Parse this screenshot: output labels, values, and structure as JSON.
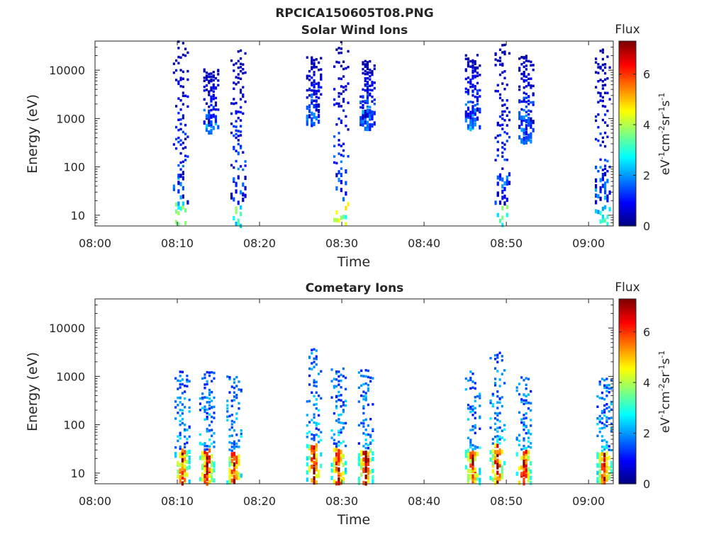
{
  "figure": {
    "title": "RPCICA150605T08.PNG"
  },
  "colors": {
    "colormap": "jet",
    "axis": "#262626",
    "background": "#ffffff"
  },
  "chart_data": [
    {
      "type": "heatmap",
      "title": "Solar Wind Ions",
      "xlabel": "Time",
      "ylabel": "Energy (eV)",
      "x_ticks": [
        "08:00",
        "08:10",
        "08:20",
        "08:30",
        "08:40",
        "08:50",
        "09:00"
      ],
      "xlim": [
        "08:00",
        "09:03"
      ],
      "y_scale": "log",
      "y_ticks": [
        "10",
        "100",
        "1000",
        "10000"
      ],
      "ylim": [
        6,
        40000
      ],
      "colorbar": {
        "label": "Flux",
        "unit": "eV-1cm-2sr-1s-1",
        "ticks": [
          "0",
          "2",
          "4",
          "6"
        ],
        "range": [
          0,
          7.3
        ]
      },
      "bursts": [
        {
          "t": 10.3,
          "emin": 6,
          "emax": 40000,
          "peak": 4.8
        },
        {
          "t": 14.0,
          "emin": 500,
          "emax": 10000,
          "peak": 2.5
        },
        {
          "t": 17.3,
          "emin": 6,
          "emax": 25000,
          "peak": 3.8
        },
        {
          "t": 26.5,
          "emin": 700,
          "emax": 18000,
          "peak": 2.2
        },
        {
          "t": 29.8,
          "emin": 6,
          "emax": 40000,
          "peak": 5.0
        },
        {
          "t": 33.0,
          "emin": 600,
          "emax": 15000,
          "peak": 2.0
        },
        {
          "t": 45.8,
          "emin": 600,
          "emax": 20000,
          "peak": 2.4
        },
        {
          "t": 49.4,
          "emin": 6,
          "emax": 35000,
          "peak": 3.8
        },
        {
          "t": 52.3,
          "emin": 300,
          "emax": 20000,
          "peak": 2.0
        },
        {
          "t": 61.6,
          "emin": 6,
          "emax": 30000,
          "peak": 3.6
        }
      ]
    },
    {
      "type": "heatmap",
      "title": "Cometary Ions",
      "xlabel": "Time",
      "ylabel": "Energy (eV)",
      "x_ticks": [
        "08:00",
        "08:10",
        "08:20",
        "08:30",
        "08:40",
        "08:50",
        "09:00"
      ],
      "xlim": [
        "08:00",
        "09:03"
      ],
      "y_scale": "log",
      "y_ticks": [
        "10",
        "100",
        "1000",
        "10000"
      ],
      "ylim": [
        6,
        40000
      ],
      "colorbar": {
        "label": "Flux",
        "unit": "eV-1cm-2sr-1s-1",
        "ticks": [
          "0",
          "2",
          "4",
          "6"
        ],
        "range": [
          0,
          7.3
        ]
      },
      "bursts": [
        {
          "t": 10.5,
          "emin": 6,
          "emax": 1200,
          "peak": 6.2
        },
        {
          "t": 13.5,
          "emin": 6,
          "emax": 1200,
          "peak": 6.8
        },
        {
          "t": 16.8,
          "emin": 6,
          "emax": 1000,
          "peak": 6.5
        },
        {
          "t": 26.5,
          "emin": 6,
          "emax": 3500,
          "peak": 6.7
        },
        {
          "t": 29.5,
          "emin": 6,
          "emax": 1600,
          "peak": 6.6
        },
        {
          "t": 32.8,
          "emin": 6,
          "emax": 1300,
          "peak": 7.2
        },
        {
          "t": 45.8,
          "emin": 6,
          "emax": 1200,
          "peak": 6.2
        },
        {
          "t": 48.8,
          "emin": 6,
          "emax": 3000,
          "peak": 6.6
        },
        {
          "t": 52.0,
          "emin": 6,
          "emax": 1000,
          "peak": 6.8
        },
        {
          "t": 61.8,
          "emin": 6,
          "emax": 900,
          "peak": 6.5
        }
      ]
    }
  ]
}
